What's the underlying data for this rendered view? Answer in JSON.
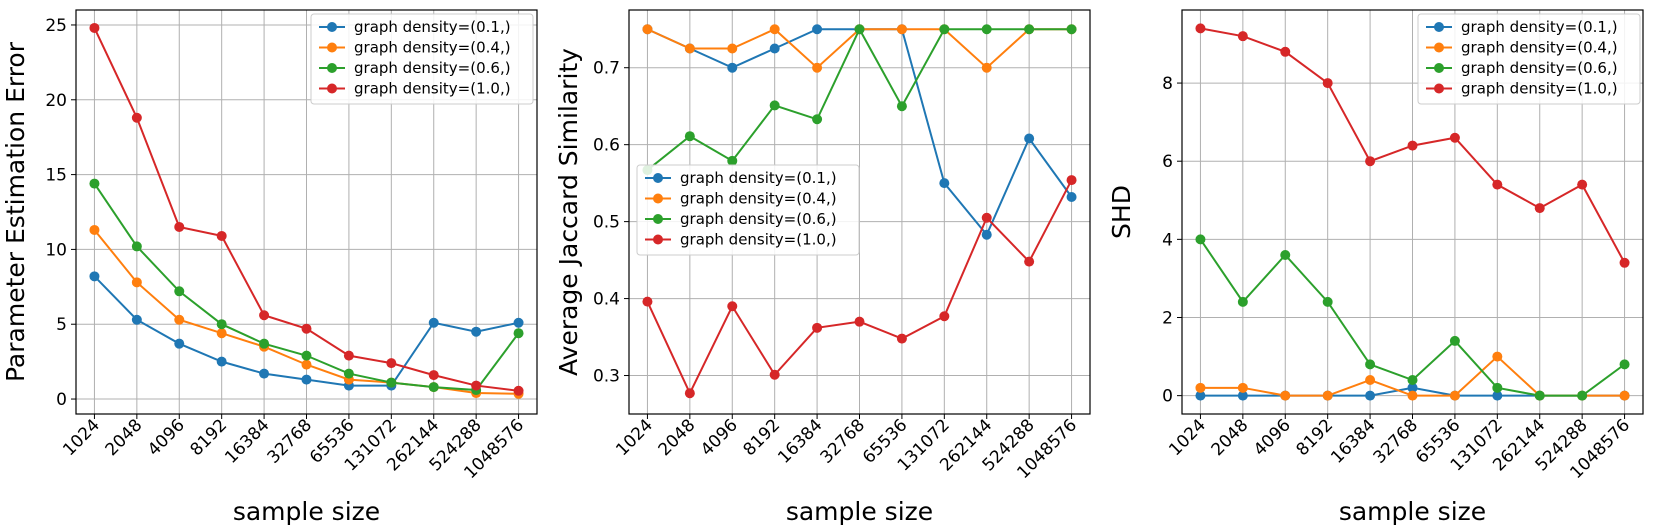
{
  "chart_data": [
    {
      "type": "line",
      "title": "",
      "xlabel": "sample size",
      "ylabel": "Parameter Estimation Error",
      "categories": [
        "1024",
        "2048",
        "4096",
        "8192",
        "16384",
        "32768",
        "65536",
        "131072",
        "262144",
        "524288",
        "1048576"
      ],
      "ylim": [
        -1,
        26
      ],
      "yticks": [
        0,
        5,
        10,
        15,
        20,
        25
      ],
      "grid": true,
      "legend_position": "top-right",
      "series": [
        {
          "name": "graph density=(0.1,)",
          "color": "#1f77b4",
          "values": [
            8.2,
            5.3,
            3.7,
            2.5,
            1.7,
            1.3,
            0.9,
            0.9,
            5.1,
            4.5,
            5.1
          ]
        },
        {
          "name": "graph density=(0.4,)",
          "color": "#ff7f0e",
          "values": [
            11.3,
            7.8,
            5.3,
            4.4,
            3.5,
            2.3,
            1.3,
            1.1,
            0.8,
            0.4,
            0.35
          ]
        },
        {
          "name": "graph density=(0.6,)",
          "color": "#2ca02c",
          "values": [
            14.4,
            10.2,
            7.2,
            5.0,
            3.7,
            2.9,
            1.7,
            1.1,
            0.8,
            0.6,
            4.4
          ]
        },
        {
          "name": "graph density=(1.0,)",
          "color": "#d62728",
          "values": [
            24.8,
            18.8,
            11.5,
            10.9,
            5.6,
            4.7,
            2.9,
            2.4,
            1.6,
            0.9,
            0.55
          ]
        }
      ]
    },
    {
      "type": "line",
      "title": "",
      "xlabel": "sample size",
      "ylabel": "Average Jaccard Similarity",
      "categories": [
        "1024",
        "2048",
        "4096",
        "8192",
        "16384",
        "32768",
        "65536",
        "131072",
        "262144",
        "524288",
        "1048576"
      ],
      "ylim": [
        0.25,
        0.775
      ],
      "yticks": [
        0.3,
        0.4,
        0.5,
        0.6,
        0.7
      ],
      "grid": true,
      "legend_position": "center-left",
      "series": [
        {
          "name": "graph density=(0.1,)",
          "color": "#1f77b4",
          "values": [
            0.75,
            0.725,
            0.7,
            0.725,
            0.75,
            0.75,
            0.75,
            0.55,
            0.483,
            0.608,
            0.532
          ]
        },
        {
          "name": "graph density=(0.4,)",
          "color": "#ff7f0e",
          "values": [
            0.75,
            0.725,
            0.725,
            0.75,
            0.7,
            0.75,
            0.75,
            0.75,
            0.7,
            0.75,
            0.75
          ]
        },
        {
          "name": "graph density=(0.6,)",
          "color": "#2ca02c",
          "values": [
            0.567,
            0.611,
            0.579,
            0.651,
            0.633,
            0.75,
            0.65,
            0.75,
            0.75,
            0.75,
            0.75
          ]
        },
        {
          "name": "graph density=(1.0,)",
          "color": "#d62728",
          "values": [
            0.396,
            0.277,
            0.39,
            0.301,
            0.362,
            0.37,
            0.348,
            0.377,
            0.505,
            0.448,
            0.554
          ]
        }
      ]
    },
    {
      "type": "line",
      "title": "",
      "xlabel": "sample size",
      "ylabel": "SHD",
      "categories": [
        "1024",
        "2048",
        "4096",
        "8192",
        "16384",
        "32768",
        "65536",
        "131072",
        "262144",
        "524288",
        "1048576"
      ],
      "ylim": [
        -0.47,
        9.87
      ],
      "yticks": [
        0,
        2,
        4,
        6,
        8
      ],
      "grid": true,
      "legend_position": "top-right",
      "series": [
        {
          "name": "graph density=(0.1,)",
          "color": "#1f77b4",
          "values": [
            0,
            0,
            0,
            0,
            0,
            0.2,
            0,
            0,
            0,
            0,
            0
          ]
        },
        {
          "name": "graph density=(0.4,)",
          "color": "#ff7f0e",
          "values": [
            0.2,
            0.2,
            0,
            0,
            0.4,
            0,
            0,
            1.0,
            0,
            0,
            0
          ]
        },
        {
          "name": "graph density=(0.6,)",
          "color": "#2ca02c",
          "values": [
            4.0,
            2.4,
            3.6,
            2.4,
            0.8,
            0.4,
            1.4,
            0.2,
            0,
            0,
            0.8
          ]
        },
        {
          "name": "graph density=(1.0,)",
          "color": "#d62728",
          "values": [
            9.4,
            9.2,
            8.8,
            8.0,
            6.0,
            6.4,
            6.6,
            5.4,
            4.8,
            5.4,
            3.4
          ]
        }
      ]
    }
  ]
}
